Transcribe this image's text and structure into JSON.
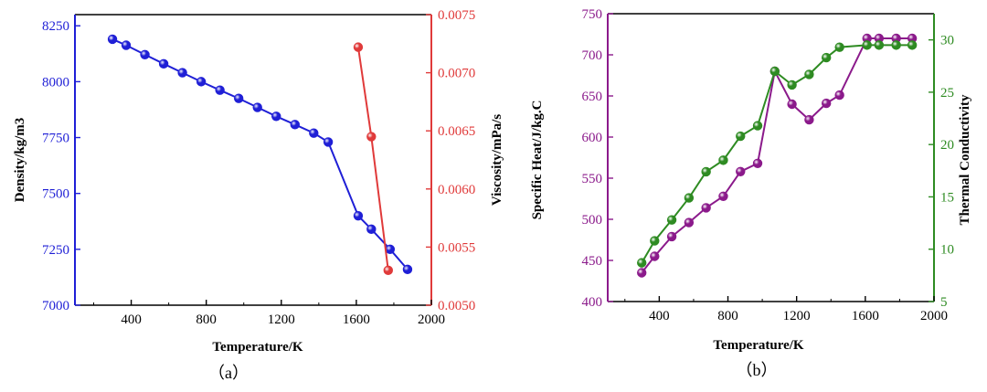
{
  "chart_data": [
    {
      "type": "line",
      "panel_label": "（a）",
      "xlabel": "Temperature/K",
      "ylabel_left": "Density/kg/m3",
      "ylabel_right": "Viscosity/mPa/s",
      "xlim": [
        100,
        2000
      ],
      "ylim_left": [
        7000,
        8300
      ],
      "ylim_right": [
        0.005,
        0.0075
      ],
      "x_ticks": [
        400,
        800,
        1200,
        1600,
        2000
      ],
      "y_ticks_left": [
        "7000",
        "7250",
        "7500",
        "7750",
        "8000",
        "8250"
      ],
      "y_ticks_right": [
        "0.0050",
        "0.0055",
        "0.0060",
        "0.0065",
        "0.0070",
        "0.0075"
      ],
      "colors": {
        "left_axis": "#1f1fd6",
        "right_axis": "#e03a3a"
      },
      "series": [
        {
          "axis": "left",
          "color": "#1f1fd6",
          "x": [
            300,
            373,
            473,
            573,
            673,
            773,
            873,
            973,
            1073,
            1173,
            1273,
            1373,
            1450,
            1610,
            1680,
            1780,
            1873
          ],
          "values": [
            8190,
            8163,
            8121,
            8080,
            8040,
            8000,
            7962,
            7925,
            7885,
            7845,
            7808,
            7770,
            7730,
            7400,
            7340,
            7250,
            7160
          ]
        },
        {
          "axis": "right",
          "color": "#e03a3a",
          "x": [
            1610,
            1680,
            1770
          ],
          "values": [
            0.00722,
            0.00645,
            0.0053
          ]
        }
      ]
    },
    {
      "type": "line",
      "panel_label": "（b）",
      "xlabel": "Temperature/K",
      "ylabel_left": "Specific Heat/J/kg.C",
      "ylabel_right": "Thermal Conductivity",
      "xlim": [
        100,
        2000
      ],
      "ylim_left": [
        400,
        750
      ],
      "ylim_right": [
        5,
        32.5
      ],
      "x_ticks": [
        400,
        800,
        1200,
        1600,
        2000
      ],
      "y_ticks_left": [
        "400",
        "450",
        "500",
        "550",
        "600",
        "650",
        "700",
        "750"
      ],
      "y_ticks_right": [
        "5",
        "10",
        "15",
        "20",
        "25",
        "30"
      ],
      "colors": {
        "left_axis": "#8b1a8b",
        "right_axis": "#2e8b22"
      },
      "series": [
        {
          "axis": "left",
          "color": "#8b1a8b",
          "x": [
            298,
            373,
            473,
            573,
            673,
            773,
            873,
            973,
            1073,
            1173,
            1273,
            1373,
            1450,
            1610,
            1680,
            1780,
            1873
          ],
          "values": [
            435,
            455,
            479,
            496,
            514,
            528,
            558,
            568,
            680,
            640,
            621,
            641,
            651,
            720,
            720,
            720,
            720
          ]
        },
        {
          "axis": "right",
          "color": "#2e8b22",
          "x": [
            298,
            373,
            473,
            573,
            673,
            773,
            873,
            973,
            1073,
            1173,
            1273,
            1373,
            1450,
            1610,
            1680,
            1780,
            1873
          ],
          "values": [
            8.7,
            10.8,
            12.8,
            14.9,
            17.4,
            18.5,
            20.8,
            21.8,
            27.0,
            25.7,
            26.7,
            28.3,
            29.3,
            29.5,
            29.5,
            29.5,
            29.5
          ]
        }
      ]
    }
  ]
}
